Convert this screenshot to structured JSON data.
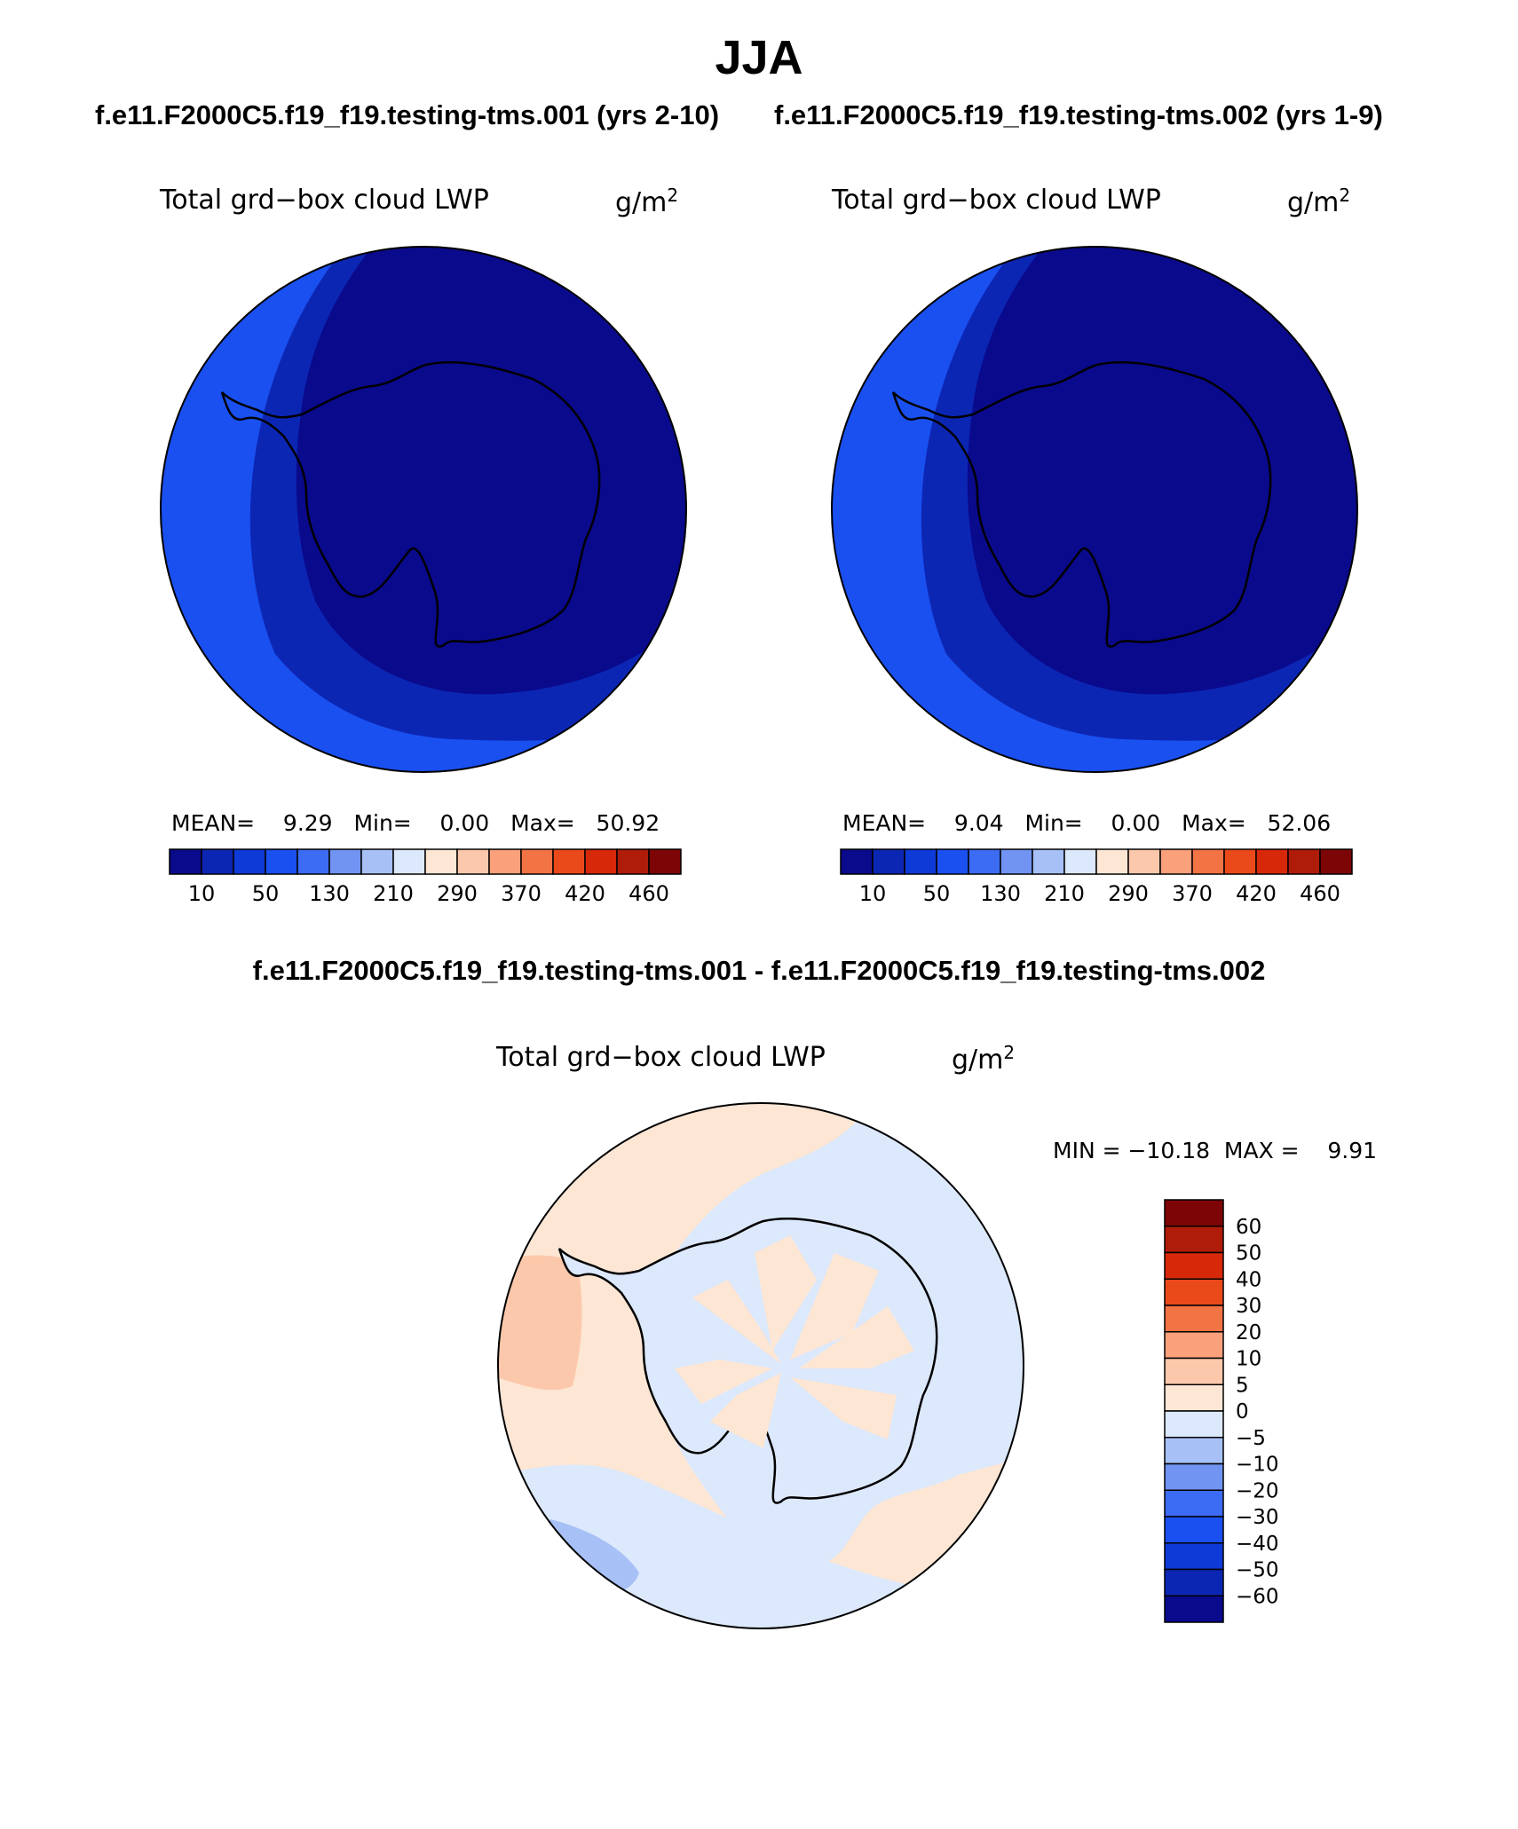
{
  "page_title": "JJA",
  "panels": [
    {
      "case_title": "f.e11.F2000C5.f19_f19.testing-tms.001 (yrs 2-10)",
      "field_label": "Total grd−box cloud LWP",
      "units": "g/m",
      "units_exp": "2",
      "stats": {
        "mean_label": "MEAN=",
        "mean": "9.29",
        "min_label": "Min=",
        "min": "0.00",
        "max_label": "Max=",
        "max": "50.92"
      }
    },
    {
      "case_title": "f.e11.F2000C5.f19_f19.testing-tms.002 (yrs 1-9)",
      "field_label": "Total grd−box cloud LWP",
      "units": "g/m",
      "units_exp": "2",
      "stats": {
        "mean_label": "MEAN=",
        "mean": "9.04",
        "min_label": "Min=",
        "min": "0.00",
        "max_label": "Max=",
        "max": "52.06"
      }
    }
  ],
  "difference": {
    "title": "f.e11.F2000C5.f19_f19.testing-tms.001 - f.e11.F2000C5.f19_f19.testing-tms.002",
    "field_label": "Total grd−box cloud LWP",
    "units": "g/m",
    "units_exp": "2",
    "minmax": "MIN = −10.18  MAX =    9.91"
  },
  "chart_data": [
    {
      "type": "heatmap",
      "title": "Total grd−box cloud LWP (case 001)",
      "colorbar_ticks": [
        "10",
        "50",
        "130",
        "210",
        "290",
        "370",
        "420",
        "460"
      ],
      "colorbar_colors": [
        "#0a0a8c",
        "#0c26b4",
        "#0e3ad8",
        "#1a50f0",
        "#3c6cf4",
        "#7194f2",
        "#a7c0f6",
        "#dce8fb",
        "#fde6d4",
        "#fcc8ab",
        "#faa07a",
        "#f27344",
        "#ea4a1a",
        "#d8280a",
        "#b01c0a",
        "#7d0505"
      ]
    },
    {
      "type": "heatmap",
      "title": "Total grd−box cloud LWP (case 002)",
      "colorbar_ticks": [
        "10",
        "50",
        "130",
        "210",
        "290",
        "370",
        "420",
        "460"
      ],
      "colorbar_colors": [
        "#0a0a8c",
        "#0c26b4",
        "#0e3ad8",
        "#1a50f0",
        "#3c6cf4",
        "#7194f2",
        "#a7c0f6",
        "#dce8fb",
        "#fde6d4",
        "#fcc8ab",
        "#faa07a",
        "#f27344",
        "#ea4a1a",
        "#d8280a",
        "#b01c0a",
        "#7d0505"
      ]
    },
    {
      "type": "heatmap",
      "title": "Total grd−box cloud LWP (difference)",
      "colorbar_ticks": [
        "60",
        "50",
        "40",
        "30",
        "20",
        "10",
        "5",
        "0",
        "−5",
        "−10",
        "−20",
        "−30",
        "−40",
        "−50",
        "−60"
      ],
      "colorbar_colors": [
        "#7d0505",
        "#b01c0a",
        "#d8280a",
        "#ea4a1a",
        "#f27344",
        "#faa07a",
        "#fcc8ab",
        "#fde6d4",
        "#dce8fb",
        "#a7c0f6",
        "#7194f2",
        "#3c6cf4",
        "#1a50f0",
        "#0e3ad8",
        "#0c26b4",
        "#0a0a8c"
      ]
    }
  ]
}
